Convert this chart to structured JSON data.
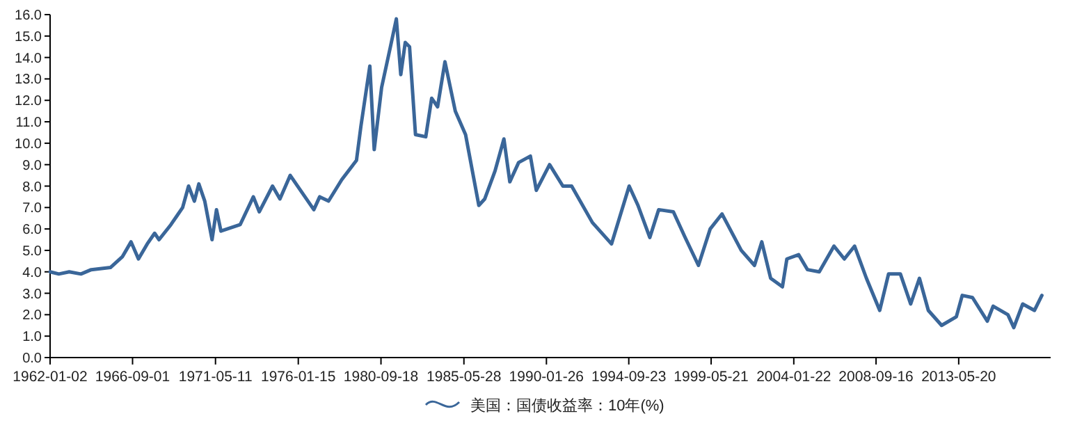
{
  "chart_data": {
    "type": "line",
    "legend": "bottom",
    "grid": false,
    "marker": "none",
    "line_style": "solid",
    "xlim": [
      "1962-01-02",
      "2018-08"
    ],
    "ylim": [
      0,
      16
    ],
    "xticks": [
      {
        "value": "1962-01-02",
        "label": "1962-01-02"
      },
      {
        "value": "1966-09-01",
        "label": "1966-09-01"
      },
      {
        "value": "1971-05-11",
        "label": "1971-05-11"
      },
      {
        "value": "1976-01-15",
        "label": "1976-01-15"
      },
      {
        "value": "1980-09-18",
        "label": "1980-09-18"
      },
      {
        "value": "1985-05-28",
        "label": "1985-05-28"
      },
      {
        "value": "1990-01-26",
        "label": "1990-01-26"
      },
      {
        "value": "1994-09-23",
        "label": "1994-09-23"
      },
      {
        "value": "1999-05-21",
        "label": "1999-05-21"
      },
      {
        "value": "2004-01-22",
        "label": "2004-01-22"
      },
      {
        "value": "2008-09-16",
        "label": "2008-09-16"
      },
      {
        "value": "2013-05-20",
        "label": "2013-05-20"
      }
    ],
    "yticks": [
      {
        "value": 0,
        "label": "0.0"
      },
      {
        "value": 1,
        "label": "1.0"
      },
      {
        "value": 2,
        "label": "2.0"
      },
      {
        "value": 3,
        "label": "3.0"
      },
      {
        "value": 4,
        "label": "4.0"
      },
      {
        "value": 5,
        "label": "5.0"
      },
      {
        "value": 6,
        "label": "6.0"
      },
      {
        "value": 7,
        "label": "7.0"
      },
      {
        "value": 8,
        "label": "8.0"
      },
      {
        "value": 9,
        "label": "9.0"
      },
      {
        "value": 10,
        "label": "10.0"
      },
      {
        "value": 11,
        "label": "11.0"
      },
      {
        "value": 12,
        "label": "12.0"
      },
      {
        "value": 13,
        "label": "13.0"
      },
      {
        "value": 14,
        "label": "14.0"
      },
      {
        "value": 15,
        "label": "15.0"
      },
      {
        "value": 16,
        "label": "16.0"
      }
    ],
    "x": [
      "1962-01-02",
      "1962-07",
      "1963-02",
      "1963-10",
      "1964-05",
      "1965-06",
      "1966-02",
      "1966-08",
      "1967-01",
      "1967-07",
      "1967-12",
      "1968-03",
      "1968-11",
      "1969-07",
      "1969-11",
      "1970-03",
      "1970-06",
      "1970-10",
      "1971-03",
      "1971-06",
      "1971-09",
      "1972-10",
      "1973-07",
      "1973-11",
      "1974-08",
      "1975-01",
      "1975-08",
      "1976-03",
      "1976-12",
      "1977-04",
      "1977-10",
      "1978-07",
      "1979-05",
      "1979-08",
      "1980-02",
      "1980-05",
      "1980-10",
      "1981-04",
      "1981-08",
      "1981-11",
      "1982-02",
      "1982-05",
      "1982-09",
      "1983-04",
      "1983-08",
      "1983-12",
      "1984-05",
      "1984-12",
      "1985-07",
      "1986-04",
      "1986-08",
      "1987-03",
      "1987-09",
      "1988-01",
      "1988-07",
      "1989-03",
      "1989-07",
      "1990-04",
      "1991-01",
      "1991-07",
      "1992-09",
      "1993-10",
      "1994-10",
      "1995-04",
      "1995-12",
      "1996-06",
      "1997-04",
      "1997-12",
      "1998-09",
      "1999-05",
      "2000-01",
      "2001-02",
      "2001-11",
      "2002-04",
      "2002-10",
      "2003-06",
      "2003-09",
      "2004-05",
      "2004-11",
      "2005-07",
      "2006-05",
      "2006-12",
      "2007-07",
      "2008-03",
      "2008-12",
      "2009-06",
      "2010-02",
      "2010-09",
      "2011-03",
      "2011-09",
      "2012-06",
      "2013-04",
      "2013-08",
      "2014-03",
      "2015-01",
      "2015-05",
      "2016-03",
      "2016-07",
      "2017-01",
      "2017-09",
      "2018-02"
    ],
    "series": [
      {
        "name": "美国：国债收益率：10年(%)",
        "color": "#3a6699",
        "values": [
          4.0,
          3.9,
          4.0,
          3.9,
          4.1,
          4.2,
          4.7,
          5.4,
          4.6,
          5.3,
          5.8,
          5.5,
          6.2,
          7.0,
          8.0,
          7.3,
          8.1,
          7.3,
          5.5,
          6.9,
          5.9,
          6.2,
          7.5,
          6.8,
          8.0,
          7.4,
          8.5,
          7.8,
          6.9,
          7.5,
          7.3,
          8.3,
          9.2,
          10.8,
          13.6,
          9.7,
          12.6,
          14.5,
          15.8,
          13.2,
          14.7,
          14.5,
          10.4,
          10.3,
          12.1,
          11.7,
          13.8,
          11.5,
          10.4,
          7.1,
          7.4,
          8.7,
          10.2,
          8.2,
          9.1,
          9.4,
          7.8,
          9.0,
          8.0,
          8.0,
          6.3,
          5.3,
          8.0,
          7.1,
          5.6,
          6.9,
          6.8,
          5.6,
          4.3,
          6.0,
          6.7,
          5.0,
          4.3,
          5.4,
          3.7,
          3.3,
          4.6,
          4.8,
          4.1,
          4.0,
          5.2,
          4.6,
          5.2,
          3.7,
          2.2,
          3.9,
          3.9,
          2.5,
          3.7,
          2.2,
          1.5,
          1.9,
          2.9,
          2.8,
          1.7,
          2.4,
          2.0,
          1.4,
          2.5,
          2.2,
          2.9
        ]
      }
    ]
  }
}
